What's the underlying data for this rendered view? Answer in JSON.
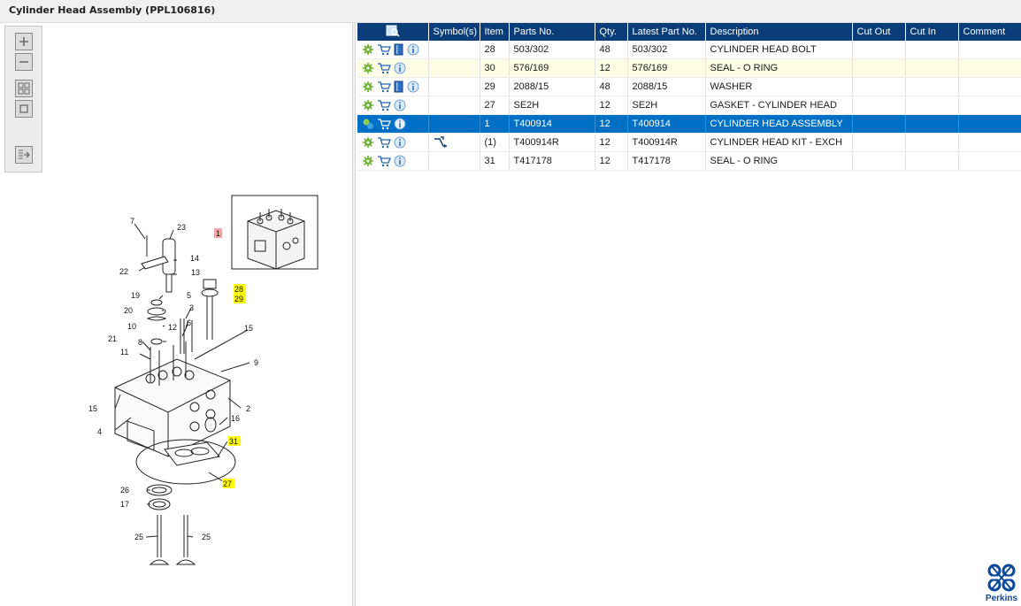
{
  "window": {
    "title": "Cylinder Head Assembly (PPL106816)"
  },
  "toolbox": {
    "tools": [
      {
        "name": "zoom-in-icon",
        "glyph": "+"
      },
      {
        "name": "zoom-out-icon",
        "glyph": "−"
      },
      {
        "name": "fit-all-icon",
        "glyph": ""
      },
      {
        "name": "fit-window-icon",
        "glyph": ""
      },
      {
        "name": "export-icon",
        "glyph": ""
      }
    ]
  },
  "diagram": {
    "callouts": {
      "c7": "7",
      "c23": "23",
      "c22": "22",
      "c14": "14",
      "c13": "13",
      "c19": "19",
      "c5": "5",
      "c20": "20",
      "c3": "3",
      "c10": "10",
      "c12": "12",
      "c6": "6",
      "c8": "8",
      "c21": "21",
      "c11": "11",
      "c15a": "15",
      "c9": "9",
      "c15b": "15",
      "c2": "2",
      "c16": "16",
      "c4": "4",
      "c26": "26",
      "c17": "17",
      "c25a": "25",
      "c25b": "25"
    },
    "highlighted_callouts": {
      "c28": "28",
      "c29": "29",
      "c31": "31",
      "c27": "27"
    },
    "inset_callout": "1",
    "colors": {
      "highlight": "#ffff00",
      "inset_marker": "#f4a6a6"
    }
  },
  "table": {
    "headers": {
      "actions": "",
      "symbols": "Symbol(s)",
      "item": "Item",
      "parts_no": "Parts No.",
      "qty": "Qty.",
      "latest_part_no": "Latest Part No.",
      "description": "Description",
      "cut_out": "Cut Out",
      "cut_in": "Cut In",
      "comment": "Comment"
    },
    "rows": [
      {
        "item": "28",
        "parts_no": "503/302",
        "qty": "48",
        "latest": "503/302",
        "description": "CYLINDER HEAD BOLT",
        "cut_out": "",
        "cut_in": "",
        "comment": "",
        "has_book": true,
        "symbol": ""
      },
      {
        "item": "30",
        "parts_no": "576/169",
        "qty": "12",
        "latest": "576/169",
        "description": "SEAL - O RING",
        "cut_out": "",
        "cut_in": "",
        "comment": "",
        "has_book": false,
        "symbol": ""
      },
      {
        "item": "29",
        "parts_no": "2088/15",
        "qty": "48",
        "latest": "2088/15",
        "description": "WASHER",
        "cut_out": "",
        "cut_in": "",
        "comment": "",
        "has_book": true,
        "symbol": ""
      },
      {
        "item": "27",
        "parts_no": "SE2H",
        "qty": "12",
        "latest": "SE2H",
        "description": "GASKET - CYLINDER HEAD",
        "cut_out": "",
        "cut_in": "",
        "comment": "",
        "has_book": false,
        "symbol": ""
      },
      {
        "item": "1",
        "parts_no": "T400914",
        "qty": "12",
        "latest": "T400914",
        "description": "CYLINDER HEAD ASSEMBLY",
        "cut_out": "",
        "cut_in": "",
        "comment": "",
        "has_book": false,
        "symbol": ""
      },
      {
        "item": "(1)",
        "parts_no": "T400914R",
        "qty": "12",
        "latest": "T400914R",
        "description": "CYLINDER HEAD KIT - EXCH",
        "cut_out": "",
        "cut_in": "",
        "comment": "",
        "has_book": false,
        "symbol": "exchange-icon"
      },
      {
        "item": "31",
        "parts_no": "T417178",
        "qty": "12",
        "latest": "T417178",
        "description": "SEAL - O RING",
        "cut_out": "",
        "cut_in": "",
        "comment": "",
        "has_book": false,
        "symbol": ""
      }
    ],
    "highlighted_row": 1,
    "selected_row": 4,
    "colors": {
      "header": "#0a3d7a",
      "selected": "#0070c7",
      "highlight": "#fefee6"
    }
  },
  "branding": {
    "logo_text": "Perkins"
  }
}
